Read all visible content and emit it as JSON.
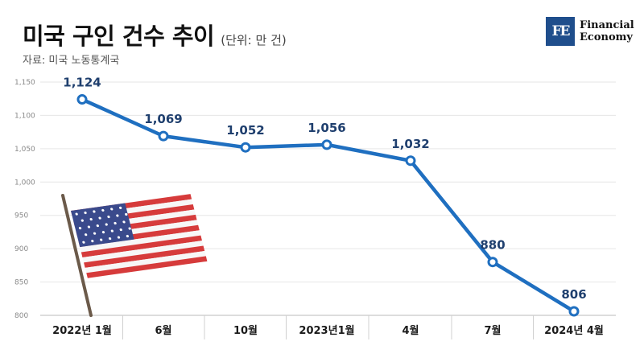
{
  "header": {
    "title": "미국 구인 건수 추이",
    "unit_note": "(단위: 만 건)",
    "source": "자료: 미국 노동통계국"
  },
  "logo": {
    "mark": "FE",
    "line1": "Financial",
    "line2": "Economy"
  },
  "colors": {
    "line": "#1f6fc0",
    "title": "#111111",
    "grid": "#e6e6e6"
  },
  "decoration": {
    "flag": "us-flag-illustration"
  },
  "chart_data": {
    "type": "line",
    "title": "미국 구인 건수 추이",
    "xlabel": "",
    "ylabel": "",
    "categories": [
      "2022년 1월",
      "6월",
      "10월",
      "2023년1월",
      "4월",
      "7월",
      "2024년 4월"
    ],
    "series": [
      {
        "values": [
          1124,
          1069,
          1052,
          1056,
          1032,
          880,
          806
        ]
      }
    ],
    "data_labels": [
      "1,124",
      "1,069",
      "1,052",
      "1,056",
      "1,032",
      "880",
      "806"
    ],
    "yticks": [
      "1,150",
      "1,100",
      "1,050",
      "1,000",
      "950",
      "900",
      "850",
      "800"
    ],
    "ylim": [
      800,
      1150
    ],
    "grid": true,
    "legend": "none"
  }
}
